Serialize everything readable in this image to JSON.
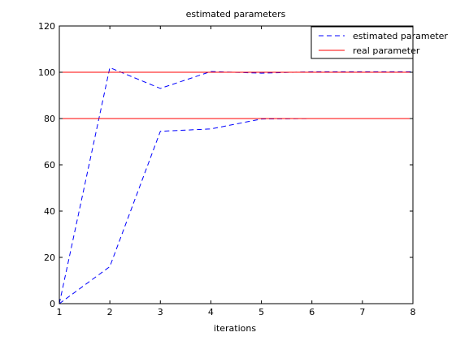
{
  "chart_data": {
    "type": "line",
    "title": "estimated parameters",
    "xlabel": "iterations",
    "ylabel": "",
    "xlim": [
      1,
      8
    ],
    "ylim": [
      0,
      120
    ],
    "xticks": [
      1,
      2,
      3,
      4,
      5,
      6,
      7,
      8
    ],
    "yticks": [
      0,
      20,
      40,
      60,
      80,
      100,
      120
    ],
    "grid": false,
    "legend_position": "top-right",
    "legend": [
      {
        "label": "estimated parameter",
        "color": "#0000ff",
        "style": "dashed"
      },
      {
        "label": "real parameter",
        "color": "#ff0000",
        "style": "solid"
      }
    ],
    "series": [
      {
        "name": "estimated parameter",
        "color": "#0000ff",
        "style": "dashed",
        "x": [
          1,
          2,
          3,
          4,
          5,
          6,
          7,
          8
        ],
        "values": [
          0,
          102,
          93,
          100.3,
          99.6,
          100.2,
          100.2,
          100.2
        ]
      },
      {
        "name": "estimated parameter",
        "color": "#0000ff",
        "style": "dashed",
        "x": [
          1,
          2,
          3,
          4,
          5,
          6,
          7,
          8
        ],
        "values": [
          0,
          16,
          74.5,
          75.5,
          79.8,
          80,
          80,
          80
        ]
      },
      {
        "name": "real parameter",
        "color": "#ff0000",
        "style": "solid",
        "x": [
          1,
          8
        ],
        "values": [
          100,
          100
        ]
      },
      {
        "name": "real parameter",
        "color": "#ff0000",
        "style": "solid",
        "x": [
          1,
          8
        ],
        "values": [
          80,
          80
        ]
      }
    ]
  }
}
